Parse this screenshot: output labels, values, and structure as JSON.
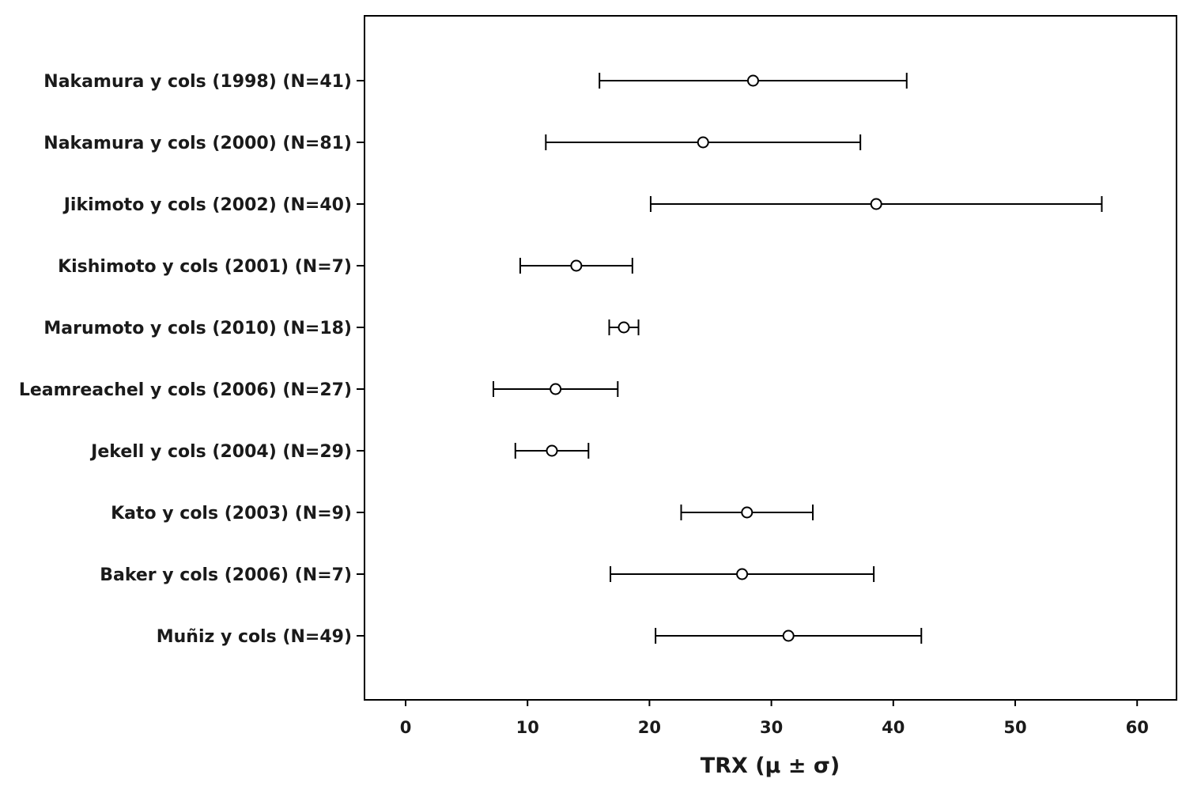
{
  "chart_data": {
    "type": "scatter",
    "xlabel": "TRX (μ ± σ)",
    "ylabel": "",
    "xlim": [
      -3.3,
      63.3
    ],
    "xticks": [
      0,
      10,
      20,
      30,
      40,
      50,
      60
    ],
    "grid": false,
    "legend": "none",
    "marker": "open-circle",
    "categories": [
      "Nakamura y cols (1998) (N=41)",
      "Nakamura y cols (2000) (N=81)",
      "Jikimoto y cols (2002) (N=40)",
      "Kishimoto y cols (2001) (N=7)",
      "Marumoto y cols (2010) (N=18)",
      "Leamreachel y cols (2006) (N=27)",
      "Jekell y cols (2004) (N=29)",
      "Kato y cols (2003) (N=9)",
      "Baker y cols (2006) (N=7)",
      "Muñiz y cols (N=49)"
    ],
    "mean": [
      28.5,
      24.4,
      38.6,
      14.0,
      17.9,
      12.3,
      12.0,
      28.0,
      27.6,
      31.4
    ],
    "low": [
      15.9,
      11.5,
      20.1,
      9.4,
      16.7,
      7.2,
      9.0,
      22.6,
      16.8,
      20.5
    ],
    "high": [
      41.1,
      37.3,
      57.1,
      18.6,
      19.1,
      17.4,
      15.0,
      33.4,
      38.4,
      42.3
    ]
  }
}
